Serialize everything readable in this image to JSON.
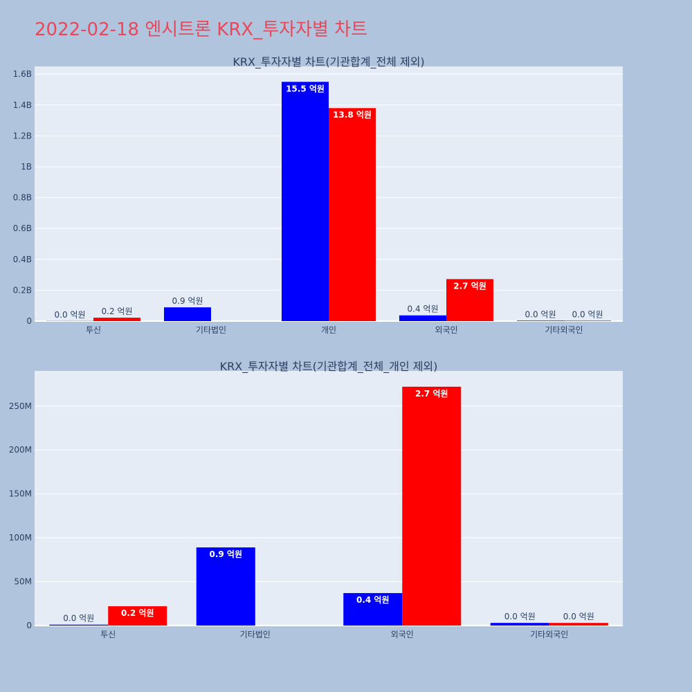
{
  "header": {
    "title": "2022-02-18 엔시트론 KRX_투자자별 차트"
  },
  "colors": {
    "background": "#b0c4de",
    "plot_bg": "#e5ecf6",
    "series_a": "#0000ff",
    "series_b": "#ff0000",
    "title": "#e8485a"
  },
  "chart_data": [
    {
      "type": "bar",
      "title": "KRX_투자자별 차트(기관합계_전체 제외)",
      "categories": [
        "투신",
        "기타법인",
        "개인",
        "외국인",
        "기타외국인"
      ],
      "ylim": [
        0,
        1650000000
      ],
      "yticks": [
        0,
        200000000,
        400000000,
        600000000,
        800000000,
        1000000000,
        1200000000,
        1400000000,
        1600000000
      ],
      "ytick_labels": [
        "0",
        "0.2B",
        "0.4B",
        "0.6B",
        "0.8B",
        "1B",
        "1.2B",
        "1.4B",
        "1.6B"
      ],
      "series": [
        {
          "color": "#0000ff",
          "values": [
            1000000,
            89000000,
            1550000000,
            37000000,
            3000000
          ],
          "labels": [
            "0.0 억원",
            "0.9 억원",
            "15.5 억원",
            "0.4 억원",
            "0.0 억원"
          ]
        },
        {
          "color": "#ff0000",
          "values": [
            22000000,
            0,
            1380000000,
            272000000,
            3000000
          ],
          "labels": [
            "0.2 억원",
            "",
            "13.8 억원",
            "2.7 억원",
            "0.0 억원"
          ]
        }
      ]
    },
    {
      "type": "bar",
      "title": "KRX_투자자별 차트(기관합계_전체_개인 제외)",
      "categories": [
        "투신",
        "기타법인",
        "외국인",
        "기타외국인"
      ],
      "ylim": [
        0,
        290000000
      ],
      "yticks": [
        0,
        50000000,
        100000000,
        150000000,
        200000000,
        250000000
      ],
      "ytick_labels": [
        "0",
        "50M",
        "100M",
        "150M",
        "200M",
        "250M"
      ],
      "series": [
        {
          "color": "#0000ff",
          "values": [
            1000000,
            89000000,
            37000000,
            3000000
          ],
          "labels": [
            "0.0 억원",
            "0.9 억원",
            "0.4 억원",
            "0.0 억원"
          ]
        },
        {
          "color": "#ff0000",
          "values": [
            22000000,
            0,
            272000000,
            3000000
          ],
          "labels": [
            "0.2 억원",
            "",
            "2.7 억원",
            "0.0 억원"
          ]
        }
      ]
    }
  ]
}
